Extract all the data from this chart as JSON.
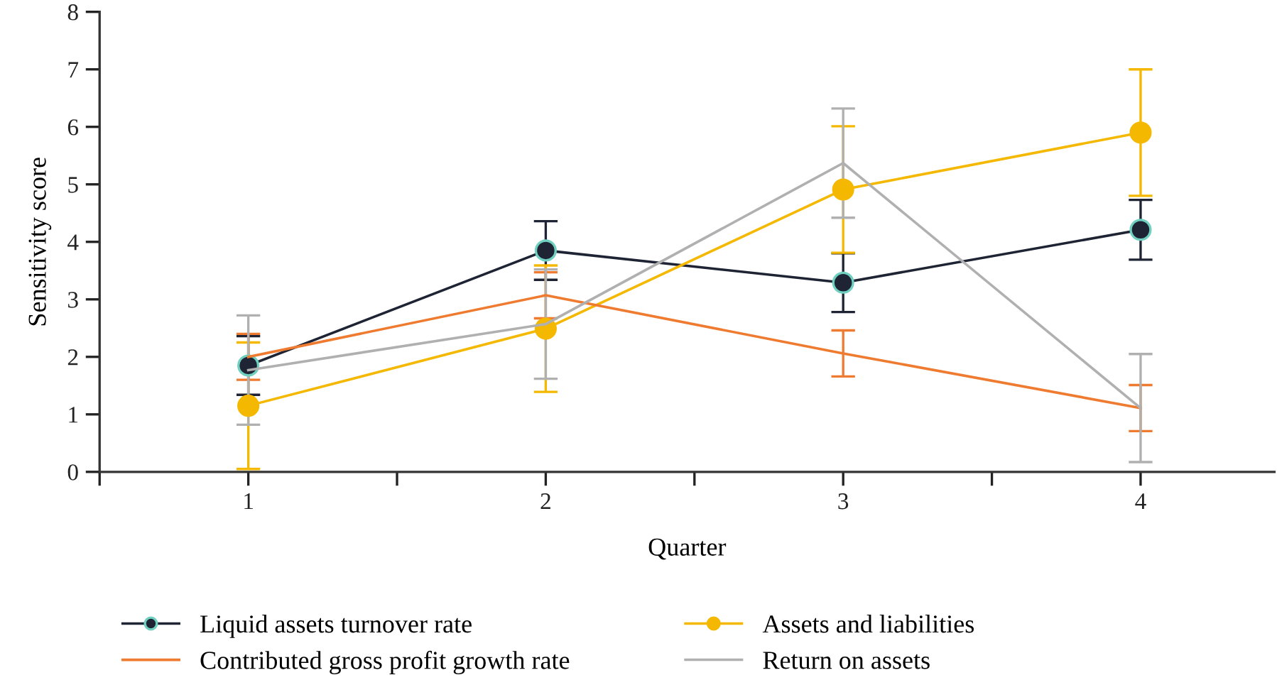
{
  "chart_data": {
    "type": "line",
    "xlabel": "Quarter",
    "ylabel": "Sensitivity score",
    "x": [
      1,
      2,
      3,
      4
    ],
    "xlim": [
      0.5,
      4.45
    ],
    "xticks": [
      {
        "value": 0.5,
        "label": null
      },
      1,
      {
        "value": 1.5,
        "label": null
      },
      2,
      {
        "value": 2.5,
        "label": null
      },
      3,
      {
        "value": 3.5,
        "label": null
      },
      4
    ],
    "ylim": [
      0,
      8
    ],
    "yticks": [
      0,
      1,
      2,
      3,
      4,
      5,
      6,
      7,
      8
    ],
    "grid": false,
    "legend": "bottom",
    "series": [
      {
        "name": "Liquid assets turnover rate",
        "color": "#1e2433",
        "marker": "circle",
        "values": [
          1.85,
          3.85,
          3.29,
          4.21
        ],
        "errors": [
          0.51,
          0.51,
          0.51,
          0.52
        ]
      },
      {
        "name": "Assets and liabilities",
        "color": "#f5b800",
        "marker": "circle",
        "values": [
          1.15,
          2.49,
          4.91,
          5.9
        ],
        "errors": [
          1.1,
          1.1,
          1.1,
          1.1
        ]
      },
      {
        "name": "Contributed gross profit growth rate",
        "color": "#ee7b2f",
        "marker": "none",
        "values": [
          2.0,
          3.07,
          2.06,
          1.11
        ],
        "errors": [
          0.4,
          0.4,
          0.4,
          0.4
        ]
      },
      {
        "name": "Return on assets",
        "color": "#b0b0b0",
        "marker": "none",
        "values": [
          1.77,
          2.57,
          5.37,
          1.11
        ],
        "errors": [
          0.95,
          0.95,
          0.95,
          0.94
        ]
      }
    ]
  }
}
